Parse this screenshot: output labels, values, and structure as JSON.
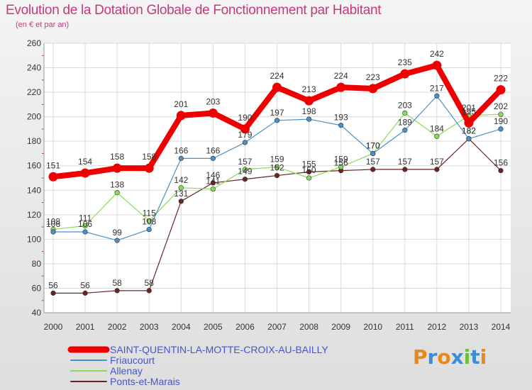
{
  "header": {
    "title": "Evolution de la Dotation Globale de Fonctionnement par Habitant",
    "subtitle": "(en € et par an)"
  },
  "brand": {
    "logo_text": "Proxiti"
  },
  "chart_data": {
    "type": "line",
    "title": "Evolution de la Dotation Globale de Fonctionnement par Habitant",
    "subtitle": "(en € et par an)",
    "xlabel": "",
    "ylabel": "",
    "x": [
      "2000",
      "2001",
      "2002",
      "2003",
      "2004",
      "2005",
      "2006",
      "2007",
      "2008",
      "2009",
      "2010",
      "2011",
      "2012",
      "2013",
      "2014"
    ],
    "ylim": [
      40,
      260
    ],
    "yticks": [
      40,
      60,
      80,
      100,
      120,
      140,
      160,
      180,
      200,
      220,
      240,
      260
    ],
    "grid": true,
    "legend_position": "bottom-left",
    "series": [
      {
        "name": "SAINT-QUENTIN-LA-MOTTE-CROIX-AU-BAILLY",
        "color": "#ee0000",
        "emphasis": "thick",
        "values": [
          151,
          154,
          158,
          158,
          201,
          203,
          190,
          224,
          213,
          224,
          223,
          235,
          242,
          195,
          222
        ]
      },
      {
        "name": "Friaucourt",
        "color": "#4a90c8",
        "emphasis": "thin",
        "values": [
          106,
          106,
          99,
          108,
          166,
          166,
          179,
          197,
          198,
          193,
          170,
          189,
          217,
          182,
          190
        ]
      },
      {
        "name": "Allenay",
        "color": "#88dd55",
        "emphasis": "thin",
        "values": [
          108,
          111,
          138,
          115,
          142,
          141,
          157,
          159,
          150,
          159,
          170,
          203,
          184,
          201,
          202
        ]
      },
      {
        "name": "Ponts-et-Marais",
        "color": "#6b2424",
        "emphasis": "thin",
        "values": [
          56,
          56,
          58,
          58,
          131,
          146,
          149,
          152,
          155,
          156,
          157,
          157,
          157,
          182,
          156
        ]
      }
    ]
  }
}
